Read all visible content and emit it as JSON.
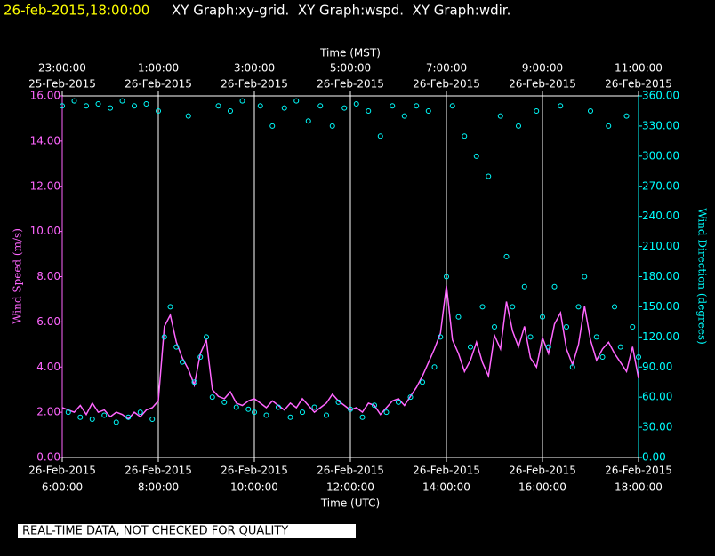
{
  "header": {
    "timestamp": "26-feb-2015,18:00:00",
    "graphs": "XY Graph:xy-grid.  XY Graph:wspd.  XY Graph:wdir."
  },
  "footer": "REAL-TIME DATA, NOT CHECKED FOR QUALITY",
  "chart_data": {
    "type": "xy",
    "x_title": "Time (UTC)",
    "x2_title": "Time (MST)",
    "y_title": "Wind Speed (m/s)",
    "y2_title": "Wind Direction (degrees)",
    "xlim": [
      6,
      18
    ],
    "xticks": [
      {
        "value": 6,
        "label": "6:00:00",
        "date": "26-Feb-2015"
      },
      {
        "value": 8,
        "label": "8:00:00",
        "date": "26-Feb-2015"
      },
      {
        "value": 10,
        "label": "10:00:00",
        "date": "26-Feb-2015"
      },
      {
        "value": 12,
        "label": "12:00:00",
        "date": "26-Feb-2015"
      },
      {
        "value": 14,
        "label": "14:00:00",
        "date": "26-Feb-2015"
      },
      {
        "value": 16,
        "label": "16:00:00",
        "date": "26-Feb-2015"
      },
      {
        "value": 18,
        "label": "18:00:00",
        "date": "26-Feb-2015"
      }
    ],
    "x2ticks": [
      {
        "value": 6,
        "label": "23:00:00",
        "date": "25-Feb-2015"
      },
      {
        "value": 8,
        "label": "1:00:00",
        "date": "26-Feb-2015"
      },
      {
        "value": 10,
        "label": "3:00:00",
        "date": "26-Feb-2015"
      },
      {
        "value": 12,
        "label": "5:00:00",
        "date": "26-Feb-2015"
      },
      {
        "value": 14,
        "label": "7:00:00",
        "date": "26-Feb-2015"
      },
      {
        "value": 16,
        "label": "9:00:00",
        "date": "26-Feb-2015"
      },
      {
        "value": 18,
        "label": "11:00:00",
        "date": "26-Feb-2015"
      }
    ],
    "ylim": [
      0,
      16
    ],
    "yticks": [
      {
        "value": 0,
        "label": "0.00"
      },
      {
        "value": 2,
        "label": "2.00"
      },
      {
        "value": 4,
        "label": "4.00"
      },
      {
        "value": 6,
        "label": "6.00"
      },
      {
        "value": 8,
        "label": "8.00"
      },
      {
        "value": 10,
        "label": "10.00"
      },
      {
        "value": 12,
        "label": "12.00"
      },
      {
        "value": 14,
        "label": "14.00"
      },
      {
        "value": 16,
        "label": "16.00"
      }
    ],
    "y2lim": [
      0,
      360
    ],
    "y2ticks": [
      {
        "value": 0,
        "label": "0.00"
      },
      {
        "value": 30,
        "label": "30.00"
      },
      {
        "value": 60,
        "label": "60.00"
      },
      {
        "value": 90,
        "label": "90.00"
      },
      {
        "value": 120,
        "label": "120.00"
      },
      {
        "value": 150,
        "label": "150.00"
      },
      {
        "value": 180,
        "label": "180.00"
      },
      {
        "value": 210,
        "label": "210.00"
      },
      {
        "value": 240,
        "label": "240.00"
      },
      {
        "value": 270,
        "label": "270.00"
      },
      {
        "value": 300,
        "label": "300.00"
      },
      {
        "value": 330,
        "label": "330.00"
      },
      {
        "value": 360,
        "label": "360.00"
      }
    ],
    "grid": true,
    "x": [
      6,
      6.125,
      6.25,
      6.375,
      6.5,
      6.625,
      6.75,
      6.875,
      7,
      7.125,
      7.25,
      7.375,
      7.5,
      7.625,
      7.75,
      7.875,
      8,
      8.125,
      8.25,
      8.375,
      8.5,
      8.625,
      8.75,
      8.875,
      9,
      9.125,
      9.25,
      9.375,
      9.5,
      9.625,
      9.75,
      9.875,
      10,
      10.125,
      10.25,
      10.375,
      10.5,
      10.625,
      10.75,
      10.875,
      11,
      11.125,
      11.25,
      11.375,
      11.5,
      11.625,
      11.75,
      11.875,
      12,
      12.125,
      12.25,
      12.375,
      12.5,
      12.625,
      12.75,
      12.875,
      13,
      13.125,
      13.25,
      13.375,
      13.5,
      13.625,
      13.75,
      13.875,
      14,
      14.125,
      14.25,
      14.375,
      14.5,
      14.625,
      14.75,
      14.875,
      15,
      15.125,
      15.25,
      15.375,
      15.5,
      15.625,
      15.75,
      15.875,
      16,
      16.125,
      16.25,
      16.375,
      16.5,
      16.625,
      16.75,
      16.875,
      17,
      17.125,
      17.25,
      17.375,
      17.5,
      17.625,
      17.75,
      17.875,
      18
    ],
    "series": [
      {
        "type": "line",
        "color": "#ff66ff",
        "axis": "y",
        "values": [
          2.2,
          2.1,
          2.0,
          2.3,
          1.9,
          2.4,
          2.0,
          2.1,
          1.8,
          2.0,
          1.9,
          1.7,
          2.0,
          1.8,
          2.1,
          2.2,
          2.5,
          5.8,
          6.3,
          5.1,
          4.4,
          3.9,
          3.2,
          4.6,
          5.2,
          3.0,
          2.7,
          2.6,
          2.9,
          2.4,
          2.3,
          2.5,
          2.6,
          2.4,
          2.2,
          2.5,
          2.3,
          2.1,
          2.4,
          2.2,
          2.6,
          2.3,
          2.0,
          2.2,
          2.4,
          2.8,
          2.5,
          2.3,
          2.1,
          2.2,
          2.0,
          2.4,
          2.3,
          1.9,
          2.2,
          2.5,
          2.6,
          2.3,
          2.7,
          3.1,
          3.6,
          4.2,
          4.8,
          5.5,
          7.6,
          5.2,
          4.6,
          3.8,
          4.3,
          5.1,
          4.2,
          3.6,
          5.4,
          4.8,
          6.9,
          5.6,
          4.9,
          5.8,
          4.4,
          4.0,
          5.3,
          4.6,
          5.9,
          6.4,
          4.8,
          4.1,
          5.0,
          6.7,
          5.2,
          4.3,
          4.8,
          5.1,
          4.6,
          4.2,
          3.8,
          4.9,
          3.5
        ]
      },
      {
        "type": "scatter",
        "color": "#00ffff",
        "axis": "y2",
        "values": [
          350,
          45,
          355,
          40,
          350,
          38,
          352,
          42,
          348,
          35,
          355,
          40,
          350,
          45,
          352,
          38,
          345,
          120,
          150,
          110,
          95,
          340,
          75,
          100,
          120,
          60,
          350,
          55,
          345,
          50,
          355,
          48,
          45,
          350,
          42,
          330,
          50,
          348,
          40,
          355,
          45,
          335,
          50,
          350,
          42,
          330,
          55,
          348,
          48,
          352,
          40,
          345,
          52,
          320,
          45,
          350,
          55,
          340,
          60,
          350,
          75,
          345,
          90,
          120,
          180,
          350,
          140,
          320,
          110,
          300,
          150,
          280,
          130,
          340,
          200,
          150,
          330,
          170,
          120,
          345,
          140,
          110,
          170,
          350,
          130,
          90,
          150,
          180,
          345,
          120,
          100,
          330,
          150,
          110,
          340,
          130,
          100
        ]
      }
    ]
  }
}
